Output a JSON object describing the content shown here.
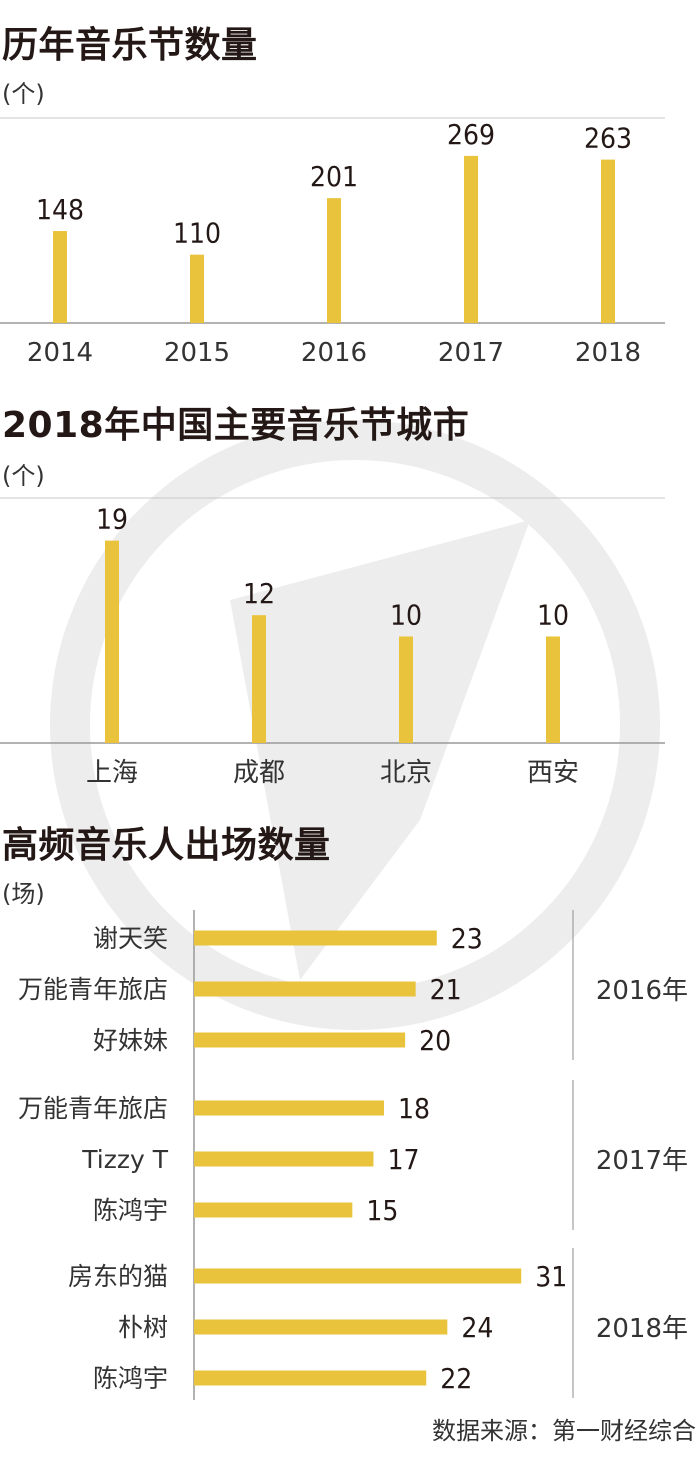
{
  "watermark_color": "#ededed",
  "bar_color": "#e9c33c",
  "axis_color": "#999999",
  "chart_data": [
    {
      "type": "bar",
      "title": "历年音乐节数量",
      "unit": "(个)",
      "categories": [
        "2014",
        "2015",
        "2016",
        "2017",
        "2018"
      ],
      "values": [
        148,
        110,
        201,
        269,
        263
      ],
      "ylim": [
        0,
        330
      ],
      "grid": false
    },
    {
      "type": "bar",
      "title": "2018年中国主要音乐节城市",
      "unit": "(个)",
      "categories": [
        "上海",
        "成都",
        "北京",
        "西安"
      ],
      "values": [
        19,
        12,
        10,
        10
      ],
      "ylim": [
        0,
        23
      ],
      "grid": false
    },
    {
      "type": "bar",
      "orientation": "horizontal",
      "title": "高频音乐人出场数量",
      "unit": "(场)",
      "xlim": [
        0,
        36
      ],
      "groups": [
        {
          "label": "2016年",
          "items": [
            {
              "name": "谢天笑",
              "value": 23
            },
            {
              "name": "万能青年旅店",
              "value": 21
            },
            {
              "name": "好妹妹",
              "value": 20
            }
          ]
        },
        {
          "label": "2017年",
          "items": [
            {
              "name": "万能青年旅店",
              "value": 18
            },
            {
              "name": "Tizzy T",
              "value": 17
            },
            {
              "name": "陈鸿宇",
              "value": 15
            }
          ]
        },
        {
          "label": "2018年",
          "items": [
            {
              "name": "房东的猫",
              "value": 31
            },
            {
              "name": "朴树",
              "value": 24
            },
            {
              "name": "陈鸿宇",
              "value": 22
            }
          ]
        }
      ]
    }
  ],
  "source": "数据来源：第一财经综合"
}
